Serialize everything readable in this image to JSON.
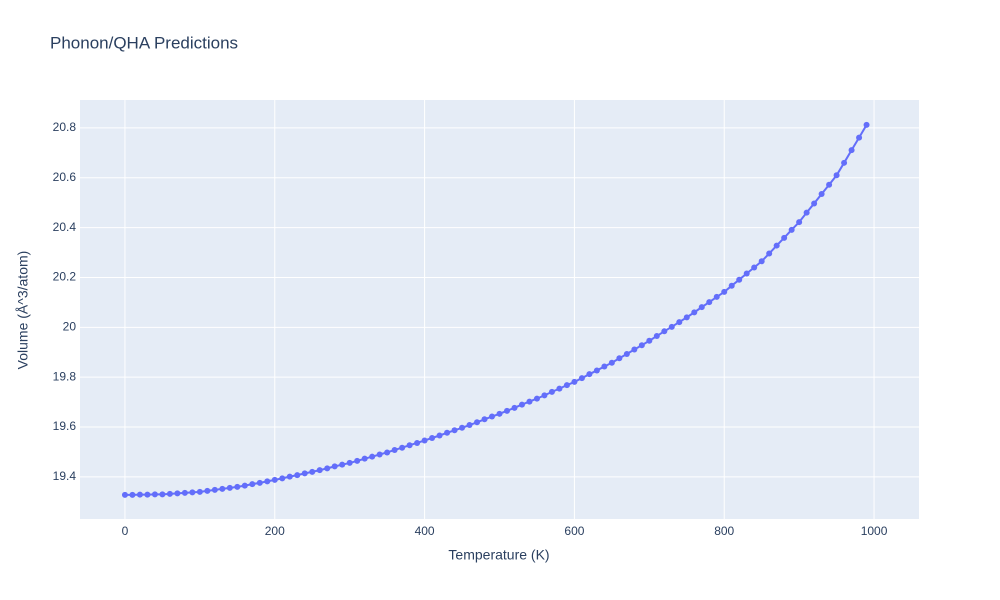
{
  "chart_data": {
    "type": "line",
    "title": "Phonon/QHA Predictions",
    "x_label": "Temperature (K)",
    "y_label": "Volume (Å^3/atom)",
    "xlim": [
      -60,
      1060
    ],
    "xticks": [
      0,
      200,
      400,
      600,
      800,
      1000
    ],
    "ylim": [
      19.231,
      20.912
    ],
    "yticks": [
      19.4,
      19.6,
      19.8,
      20,
      20.2,
      20.4,
      20.6,
      20.8
    ],
    "grid": true,
    "x": [
      0,
      10,
      20,
      30,
      40,
      50,
      60,
      70,
      80,
      90,
      100,
      110,
      120,
      130,
      140,
      150,
      160,
      170,
      180,
      190,
      200,
      210,
      220,
      230,
      240,
      250,
      260,
      270,
      280,
      290,
      300,
      310,
      320,
      330,
      340,
      350,
      360,
      370,
      380,
      390,
      400,
      410,
      420,
      430,
      440,
      450,
      460,
      470,
      480,
      490,
      500,
      510,
      520,
      530,
      540,
      550,
      560,
      570,
      580,
      590,
      600,
      610,
      620,
      630,
      640,
      650,
      660,
      670,
      680,
      690,
      700,
      710,
      720,
      730,
      740,
      750,
      760,
      770,
      780,
      790,
      800,
      810,
      820,
      830,
      840,
      850,
      860,
      870,
      880,
      890,
      900,
      910,
      920,
      930,
      940,
      950,
      960,
      970,
      980,
      990
    ],
    "series": [
      {
        "color": "#636efa",
        "values": [
          19.328,
          19.328,
          19.329,
          19.329,
          19.33,
          19.33,
          19.332,
          19.334,
          19.336,
          19.338,
          19.34,
          19.344,
          19.348,
          19.352,
          19.356,
          19.36,
          19.365,
          19.371,
          19.376,
          19.382,
          19.388,
          19.394,
          19.401,
          19.407,
          19.414,
          19.42,
          19.427,
          19.434,
          19.442,
          19.449,
          19.456,
          19.464,
          19.473,
          19.481,
          19.49,
          19.498,
          19.508,
          19.517,
          19.527,
          19.536,
          19.546,
          19.556,
          19.566,
          19.577,
          19.587,
          19.597,
          19.608,
          19.619,
          19.631,
          19.642,
          19.653,
          19.665,
          19.677,
          19.69,
          19.702,
          19.714,
          19.727,
          19.741,
          19.754,
          19.768,
          19.781,
          19.796,
          19.812,
          19.827,
          19.843,
          19.858,
          19.876,
          19.893,
          19.911,
          19.928,
          19.946,
          19.965,
          19.984,
          20.002,
          20.021,
          20.04,
          20.06,
          20.081,
          20.101,
          20.122,
          20.142,
          20.167,
          20.191,
          20.216,
          20.24,
          20.265,
          20.296,
          20.328,
          20.359,
          20.391,
          20.422,
          20.46,
          20.497,
          20.535,
          20.572,
          20.61,
          20.66,
          20.711,
          20.761,
          20.812
        ]
      }
    ]
  }
}
